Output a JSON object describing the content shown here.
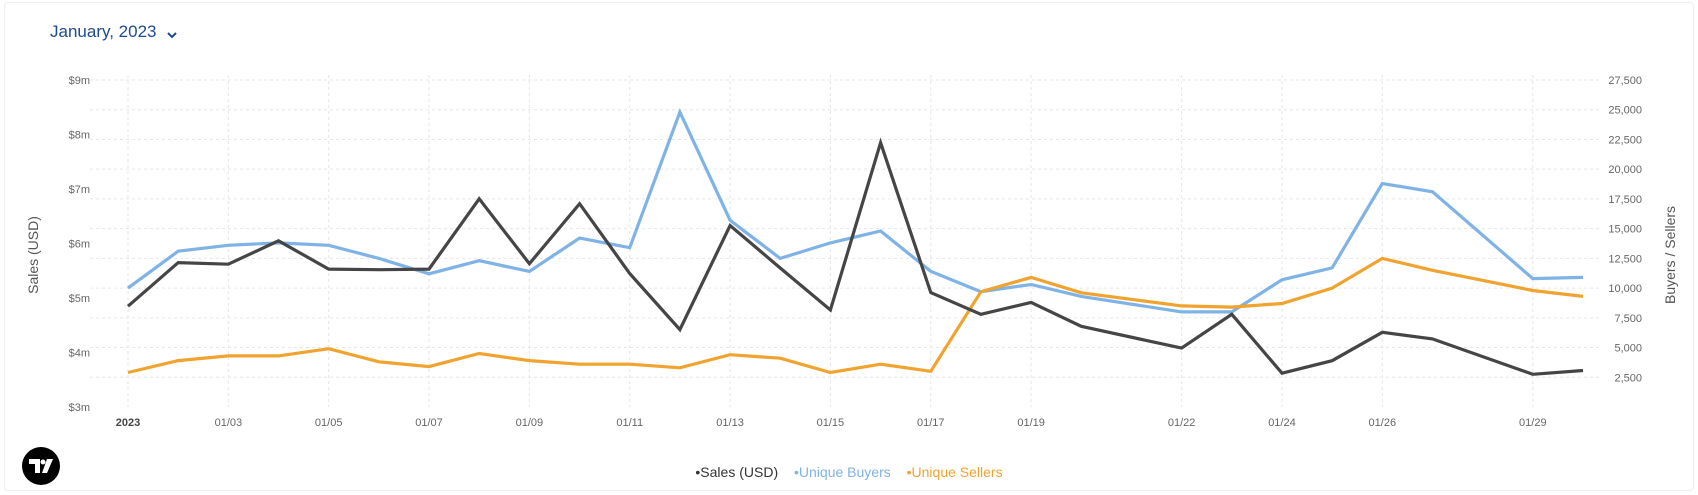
{
  "header": {
    "month_label": "January, 2023"
  },
  "legend": {
    "sales_label": "•Sales (USD)",
    "buyers_label": "•Unique Buyers",
    "sellers_label": "•Unique Sellers"
  },
  "colors": {
    "sales": "#454545",
    "buyers": "#7fb3e6",
    "sellers": "#f0a32e",
    "header_text": "#1d4b8f"
  },
  "logo": {
    "icon": "tradingview-logo-icon",
    "text": "TV"
  },
  "chart_data": {
    "type": "line",
    "x": [
      "2023-01-01",
      "2023-01-02",
      "2023-01-03",
      "2023-01-04",
      "2023-01-05",
      "2023-01-06",
      "2023-01-07",
      "2023-01-08",
      "2023-01-09",
      "2023-01-10",
      "2023-01-11",
      "2023-01-12",
      "2023-01-13",
      "2023-01-14",
      "2023-01-15",
      "2023-01-16",
      "2023-01-17",
      "2023-01-18",
      "2023-01-19",
      "2023-01-20",
      "2023-01-22",
      "2023-01-23",
      "2023-01-24",
      "2023-01-25",
      "2023-01-26",
      "2023-01-27",
      "2023-01-29",
      "2023-01-30"
    ],
    "x_tick_labels": [
      "2023",
      "01/03",
      "01/05",
      "01/07",
      "01/09",
      "01/11",
      "01/13",
      "01/15",
      "01/17",
      "01/19",
      "01/22",
      "01/24",
      "01/26",
      "01/29"
    ],
    "left_axis": {
      "title": "Sales (USD)",
      "ylim": [
        3,
        9
      ],
      "ticks": [
        "$3m",
        "$4m",
        "$5m",
        "$6m",
        "$7m",
        "$8m",
        "$9m"
      ],
      "tick_values": [
        3,
        4,
        5,
        6,
        7,
        8,
        9
      ]
    },
    "right_axis": {
      "title": "Buyers / Sellers",
      "ylim": [
        0,
        27500
      ],
      "ticks": [
        "2,500",
        "5,000",
        "7,500",
        "10,000",
        "12,500",
        "15,000",
        "17,500",
        "20,000",
        "22,500",
        "25,000",
        "27,500"
      ],
      "tick_values": [
        2500,
        5000,
        7500,
        10000,
        12500,
        15000,
        17500,
        20000,
        22500,
        25000,
        27500
      ]
    },
    "grid": true,
    "series": [
      {
        "name": "Sales (USD)",
        "axis": "left",
        "values": [
          4.85,
          5.65,
          5.62,
          6.05,
          5.53,
          5.52,
          5.53,
          6.82,
          5.63,
          6.73,
          5.45,
          4.42,
          6.33,
          5.55,
          4.78,
          7.85,
          5.1,
          4.7,
          4.92,
          4.48,
          4.08,
          4.7,
          3.62,
          3.85,
          4.37,
          4.25,
          3.6,
          3.67
        ]
      },
      {
        "name": "Unique Buyers",
        "axis": "right",
        "values": [
          10000,
          13100,
          13600,
          13800,
          13600,
          12500,
          11200,
          12300,
          11400,
          14200,
          13400,
          24800,
          15700,
          12500,
          13800,
          14800,
          11400,
          9700,
          10300,
          9300,
          8000,
          8000,
          10700,
          11700,
          18800,
          18100,
          10800,
          10900
        ]
      },
      {
        "name": "Unique Sellers",
        "axis": "right",
        "values": [
          2900,
          3900,
          4300,
          4300,
          4900,
          3800,
          3400,
          4500,
          3900,
          3600,
          3600,
          3300,
          4400,
          4100,
          2900,
          3600,
          3000,
          9700,
          10900,
          9600,
          8500,
          8400,
          8700,
          10000,
          12500,
          11500,
          9800,
          9300
        ]
      }
    ]
  }
}
